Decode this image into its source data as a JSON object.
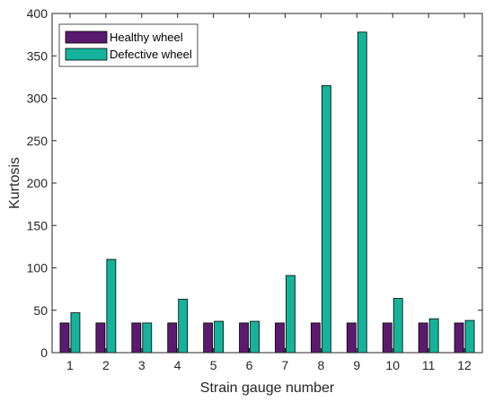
{
  "chart_data": {
    "type": "bar",
    "title": "",
    "xlabel": "Strain gauge number",
    "ylabel": "Kurtosis",
    "categories": [
      "1",
      "2",
      "3",
      "4",
      "5",
      "6",
      "7",
      "8",
      "9",
      "10",
      "11",
      "12"
    ],
    "series": [
      {
        "name": "Healthy wheel",
        "color": "#5c1a6f",
        "values": [
          35,
          35,
          35,
          35,
          35,
          35,
          35,
          35,
          35,
          35,
          35,
          35
        ]
      },
      {
        "name": "Defective wheel",
        "color": "#15b39b",
        "values": [
          47,
          110,
          35,
          63,
          37,
          37,
          91,
          315,
          378,
          64,
          40,
          38
        ]
      }
    ],
    "ylim": [
      0,
      400
    ],
    "yticks": [
      "0",
      "50",
      "100",
      "150",
      "200",
      "250",
      "300",
      "350",
      "400"
    ],
    "grid": false,
    "legend_position": "top-left"
  }
}
